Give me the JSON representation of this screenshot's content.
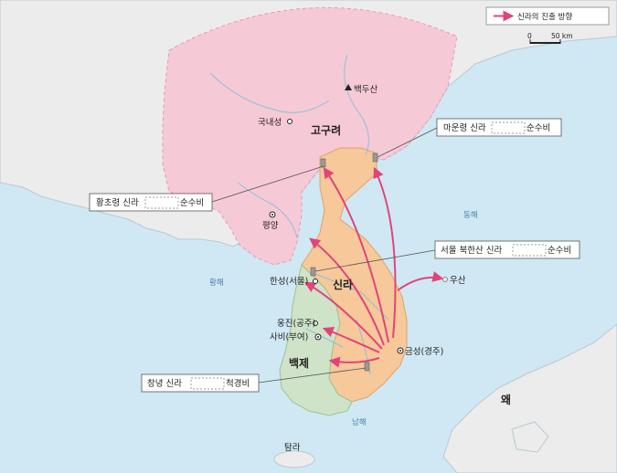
{
  "legend": {
    "route_label": "신라의 진출 방향",
    "scale_zero": "0",
    "scale_distance": "50 km"
  },
  "places": {
    "goguryeo": "고구려",
    "silla": "신라",
    "baekje": "백제",
    "wa": "왜",
    "baekdusan": "백두산",
    "gungnaeseong": "국내성",
    "pyeongyang": "평양",
    "hanseong": "한성(서울)",
    "ungjin": "웅진(공주)",
    "sabi": "사비(부여)",
    "geumseong": "금성(경주)",
    "usan": "우산",
    "tamna": "탐라"
  },
  "seas": {
    "east": "동해",
    "yellow": "황해",
    "south": "남해"
  },
  "callouts": {
    "maunryeong": {
      "prefix": "마운령 신라",
      "suffix": "순수비"
    },
    "hwangchoryeong": {
      "prefix": "황초령 신라",
      "suffix": "순수비"
    },
    "bukhansan": {
      "prefix": "서울 북한산 신라",
      "suffix": "순수비"
    },
    "changnyeong": {
      "prefix": "창녕 신라",
      "suffix": "척경비"
    }
  },
  "colors": {
    "sea": "#cfe8f3",
    "land": "#ececec",
    "goguryeo": "#f6c9d6",
    "silla": "#f6c89a",
    "baekje": "#cfe3c9",
    "arrow": "#e0457a"
  }
}
